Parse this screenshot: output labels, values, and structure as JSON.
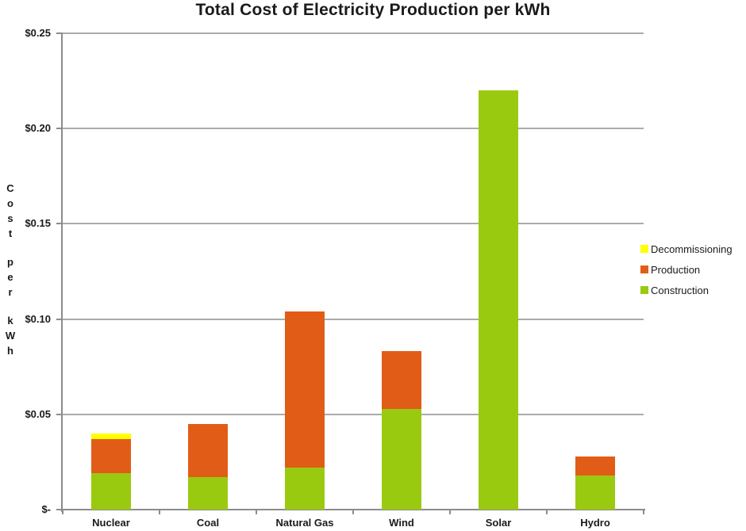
{
  "title": "Total Cost of Electricity Production per kWh",
  "legend": {
    "items": [
      {
        "label": "Decommissioning",
        "color": "#FFFF00"
      },
      {
        "label": "Production",
        "color": "#E15D17"
      },
      {
        "label": "Construction",
        "color": "#9ACA10"
      }
    ]
  },
  "chart_data": {
    "type": "bar",
    "stacked": true,
    "title": "Total Cost of Electricity Production per kWh",
    "xlabel": "",
    "ylabel": "Cost per kWh",
    "categories": [
      "Nuclear",
      "Coal",
      "Natural Gas",
      "Wind",
      "Solar",
      "Hydro"
    ],
    "series": [
      {
        "name": "Construction",
        "color": "#9ACA10",
        "values": [
          0.019,
          0.017,
          0.022,
          0.053,
          0.22,
          0.018
        ]
      },
      {
        "name": "Production",
        "color": "#E15D17",
        "values": [
          0.018,
          0.028,
          0.082,
          0.03,
          0,
          0.01
        ]
      },
      {
        "name": "Decommissioning",
        "color": "#FFFF00",
        "values": [
          0.003,
          0,
          0,
          0,
          0,
          0
        ]
      }
    ],
    "totals": [
      0.04,
      0.045,
      0.104,
      0.083,
      0.22,
      0.028
    ],
    "ylim": [
      0,
      0.25
    ],
    "y_tick_interval": 0.05,
    "y_tick_labels": [
      "$0.25",
      "$0.20",
      "$0.15",
      "$0.10",
      "$0.05",
      "$-"
    ],
    "grid": true,
    "grid_color": "#ABABAB",
    "axis_color": "#8C8C8C",
    "legend_position": "right"
  }
}
